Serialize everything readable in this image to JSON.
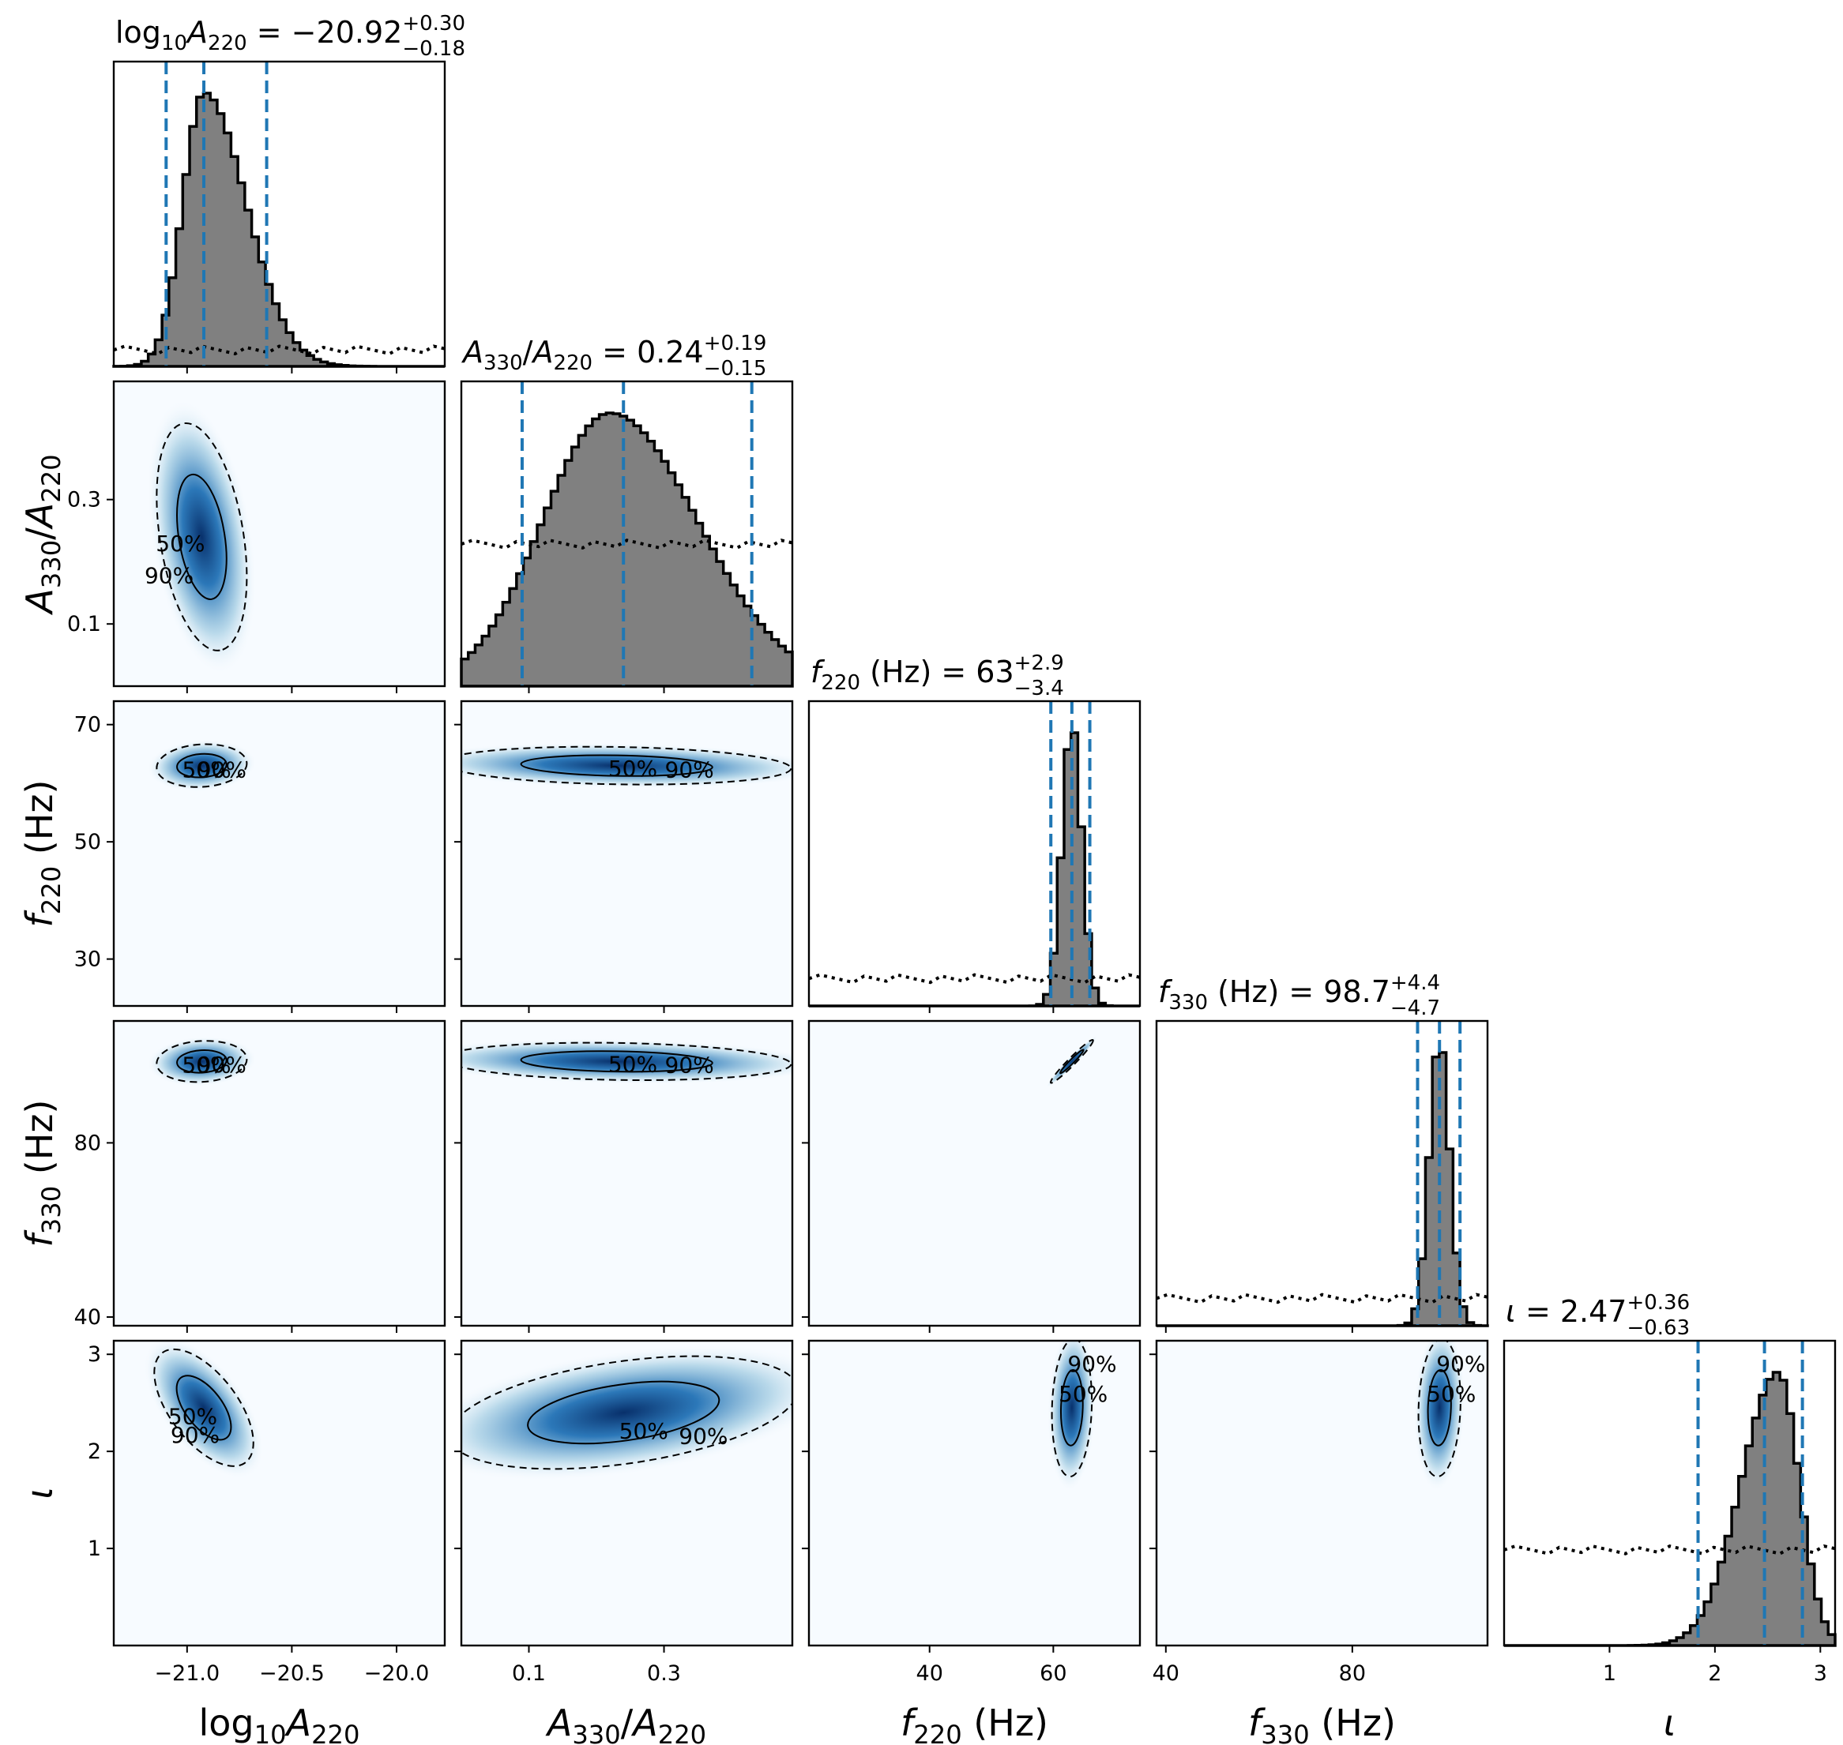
{
  "chart_data": {
    "type": "corner",
    "colors": {
      "hist_fill": "#808080",
      "hist_edge": "#000000",
      "quantile_line": "#1f77b4",
      "density_low": "#f7fbff",
      "density_high": "#08306b"
    },
    "contour_levels": [
      "50%",
      "90%"
    ],
    "parameters": [
      {
        "key": "logA",
        "axis_label": "log10A220",
        "axis_html": [
          "log",
          "10",
          "A",
          "220"
        ],
        "title": {
          "prefix": "log10A220 = ",
          "median": "−20.92",
          "upper": "+0.30",
          "lower": "−0.18"
        },
        "range": [
          -21.35,
          -19.77
        ],
        "ticks": [
          -21.0,
          -20.5,
          -20.0
        ],
        "tick_labels": [
          "−21.0",
          "−20.5",
          "−20.0"
        ],
        "quantiles": [
          -21.1,
          -20.92,
          -20.62
        ],
        "hist_mode": -20.92,
        "hist_sigma_left": 0.1,
        "hist_sigma_right": 0.2,
        "prior_level": 0.06
      },
      {
        "key": "ratio",
        "axis_label": "A330/A220",
        "title": {
          "prefix": "A330/A220 = ",
          "median": "0.24",
          "upper": "+0.19",
          "lower": "−0.15"
        },
        "range": [
          0.0,
          0.49
        ],
        "ticks": [
          0.1,
          0.3
        ],
        "tick_labels": [
          "0.1",
          "0.3"
        ],
        "quantiles": [
          0.09,
          0.24,
          0.43
        ],
        "hist_mode": 0.22,
        "hist_sigma_left": 0.1,
        "hist_sigma_right": 0.13,
        "prior_level": 0.52
      },
      {
        "key": "f220",
        "axis_label": "f220 (Hz)",
        "title": {
          "prefix": "f220 (Hz) = ",
          "median": "63",
          "upper": "+2.9",
          "lower": "−3.4"
        },
        "range": [
          20.5,
          74.0
        ],
        "ticks": [
          40,
          60
        ],
        "tick_labels": [
          "40",
          "60"
        ],
        "quantiles": [
          59.6,
          63.0,
          65.9
        ],
        "hist_mode": 63.0,
        "hist_sigma_left": 1.6,
        "hist_sigma_right": 1.6,
        "prior_level": 0.1
      },
      {
        "key": "f330",
        "axis_label": "f330 (Hz)",
        "title": {
          "prefix": "f330 (Hz) = ",
          "median": "98.7",
          "upper": "+4.4",
          "lower": "−4.7"
        },
        "range": [
          38.0,
          109.0
        ],
        "ticks": [
          40,
          80
        ],
        "tick_labels": [
          "40",
          "80"
        ],
        "quantiles": [
          94.0,
          98.7,
          103.1
        ],
        "hist_mode": 98.7,
        "hist_sigma_left": 2.2,
        "hist_sigma_right": 2.2,
        "prior_level": 0.1
      },
      {
        "key": "iota",
        "axis_label": "ι",
        "title": {
          "prefix": "ι = ",
          "median": "2.47",
          "upper": "+0.36",
          "lower": "−0.63"
        },
        "range": [
          0.0,
          3.14
        ],
        "ticks": [
          1,
          2,
          3
        ],
        "tick_labels": [
          "1",
          "2",
          "3"
        ],
        "quantiles": [
          1.84,
          2.47,
          2.83
        ],
        "hist_mode": 2.6,
        "hist_sigma_left": 0.35,
        "hist_sigma_right": 0.2,
        "prior_level": 0.35
      }
    ],
    "y_axes": [
      {
        "row": 1,
        "label": "A330/A220",
        "range": [
          0.0,
          0.49
        ],
        "ticks": [
          0.1,
          0.3
        ],
        "tick_labels": [
          "0.1",
          "0.3"
        ]
      },
      {
        "row": 2,
        "label": "f220 (Hz)",
        "range": [
          22.0,
          74.0
        ],
        "ticks": [
          30,
          50,
          70
        ],
        "tick_labels": [
          "30",
          "50",
          "70"
        ]
      },
      {
        "row": 3,
        "label": "f330 (Hz)",
        "range": [
          38.0,
          108.0
        ],
        "ticks": [
          40,
          80
        ],
        "tick_labels": [
          "40",
          "80"
        ]
      },
      {
        "row": 4,
        "label": "ι",
        "range": [
          0.0,
          3.14
        ],
        "ticks": [
          1,
          2,
          3
        ],
        "tick_labels": [
          "1",
          "2",
          "3"
        ]
      }
    ],
    "pair_panels": [
      {
        "row": 1,
        "col": 0,
        "center": [
          -20.93,
          0.24
        ],
        "sd": [
          0.1,
          0.085
        ],
        "rho": -0.35
      },
      {
        "row": 2,
        "col": 0,
        "center": [
          -20.93,
          63.0
        ],
        "sd": [
          0.1,
          1.7
        ],
        "rho": 0.1
      },
      {
        "row": 2,
        "col": 1,
        "center": [
          0.23,
          63.0
        ],
        "sd": [
          0.12,
          1.5
        ],
        "rho": -0.15
      },
      {
        "row": 3,
        "col": 0,
        "center": [
          -20.93,
          98.7
        ],
        "sd": [
          0.1,
          2.2
        ],
        "rho": 0.1
      },
      {
        "row": 3,
        "col": 1,
        "center": [
          0.23,
          98.7
        ],
        "sd": [
          0.12,
          2.0
        ],
        "rho": -0.15
      },
      {
        "row": 3,
        "col": 2,
        "center": [
          63.0,
          98.7
        ],
        "sd": [
          1.6,
          2.3
        ],
        "rho": 0.97
      },
      {
        "row": 4,
        "col": 0,
        "center": [
          -20.92,
          2.45
        ],
        "sd": [
          0.11,
          0.28
        ],
        "rho": -0.6
      },
      {
        "row": 4,
        "col": 1,
        "center": [
          0.24,
          2.4
        ],
        "sd": [
          0.12,
          0.27
        ],
        "rho": 0.4
      },
      {
        "row": 4,
        "col": 2,
        "center": [
          63.0,
          2.45
        ],
        "sd": [
          1.5,
          0.33
        ],
        "rho": 0.1
      },
      {
        "row": 4,
        "col": 3,
        "center": [
          98.7,
          2.45
        ],
        "sd": [
          2.1,
          0.33
        ],
        "rho": 0.1
      }
    ]
  }
}
